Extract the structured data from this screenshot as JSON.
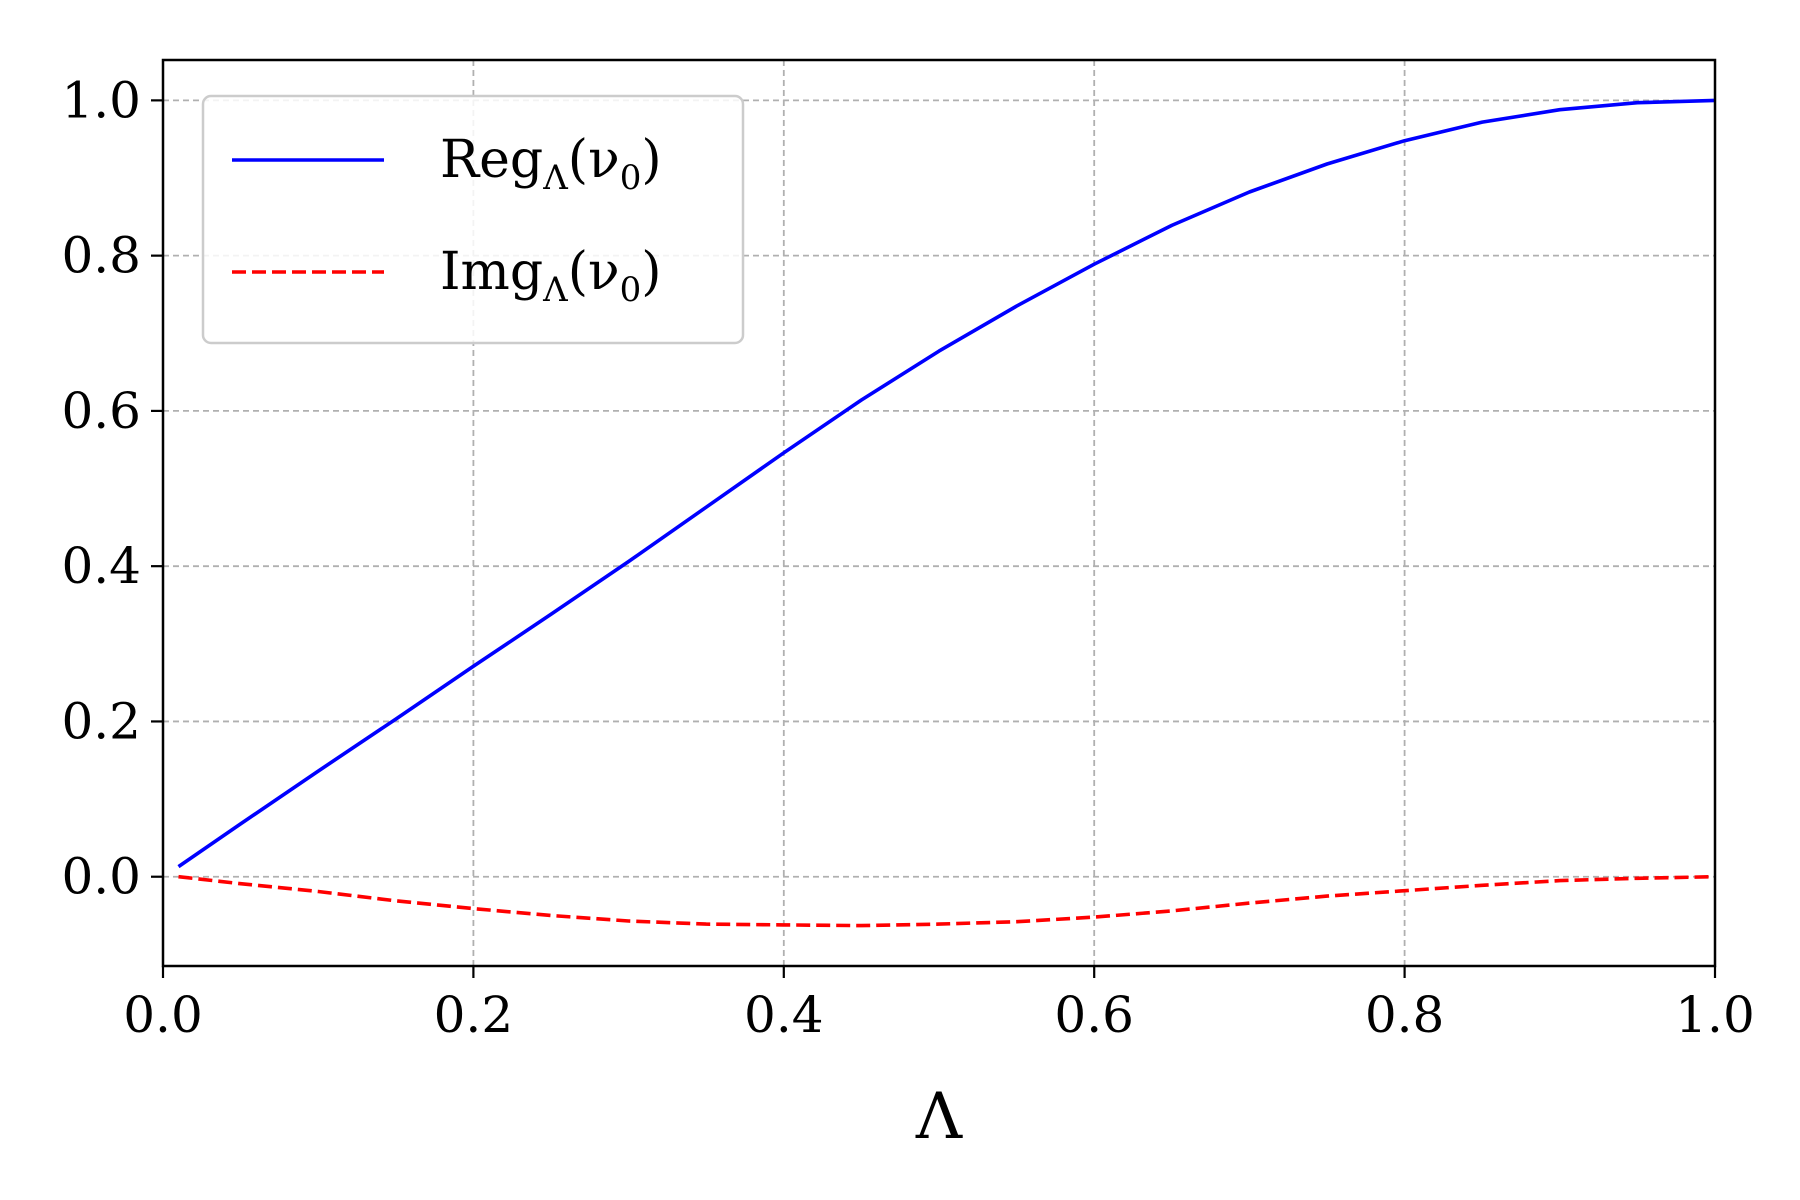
{
  "chart_data": {
    "type": "line",
    "title": "",
    "xlabel": "Λ",
    "ylabel": "",
    "xlim": [
      0.0,
      1.0
    ],
    "ylim": [
      -0.115,
      1.052
    ],
    "grid": true,
    "legend_placement": "top-left",
    "x_ticks": [
      "0.0",
      "0.2",
      "0.4",
      "0.6",
      "0.8",
      "1.0"
    ],
    "y_ticks": [
      "0.0",
      "0.2",
      "0.4",
      "0.6",
      "0.8",
      "1.0"
    ],
    "x": [
      0.01,
      0.05,
      0.1,
      0.15,
      0.2,
      0.25,
      0.3,
      0.35,
      0.4,
      0.45,
      0.5,
      0.55,
      0.6,
      0.65,
      0.7,
      0.75,
      0.8,
      0.85,
      0.9,
      0.95,
      1.0
    ],
    "series": [
      {
        "name": "Re g_Λ(ν_0)",
        "legend_main": "Reg",
        "legend_sub": "Λ",
        "legend_arg": "(ν",
        "legend_arg_sub": "0",
        "legend_close": ")",
        "color": "#0000ff",
        "style": "solid",
        "values": [
          0.013,
          0.068,
          0.136,
          0.203,
          0.271,
          0.338,
          0.406,
          0.476,
          0.546,
          0.614,
          0.677,
          0.735,
          0.789,
          0.839,
          0.882,
          0.918,
          0.948,
          0.972,
          0.988,
          0.997,
          1.0
        ]
      },
      {
        "name": "Im g_Λ(ν_0)",
        "legend_main": "Img",
        "legend_sub": "Λ",
        "legend_arg": "(ν",
        "legend_arg_sub": "0",
        "legend_close": ")",
        "color": "#ff0000",
        "style": "dashed",
        "values": [
          0.0,
          -0.009,
          -0.019,
          -0.031,
          -0.041,
          -0.05,
          -0.057,
          -0.061,
          -0.062,
          -0.063,
          -0.061,
          -0.058,
          -0.052,
          -0.044,
          -0.034,
          -0.025,
          -0.018,
          -0.011,
          -0.005,
          -0.002,
          0.0
        ]
      }
    ]
  }
}
